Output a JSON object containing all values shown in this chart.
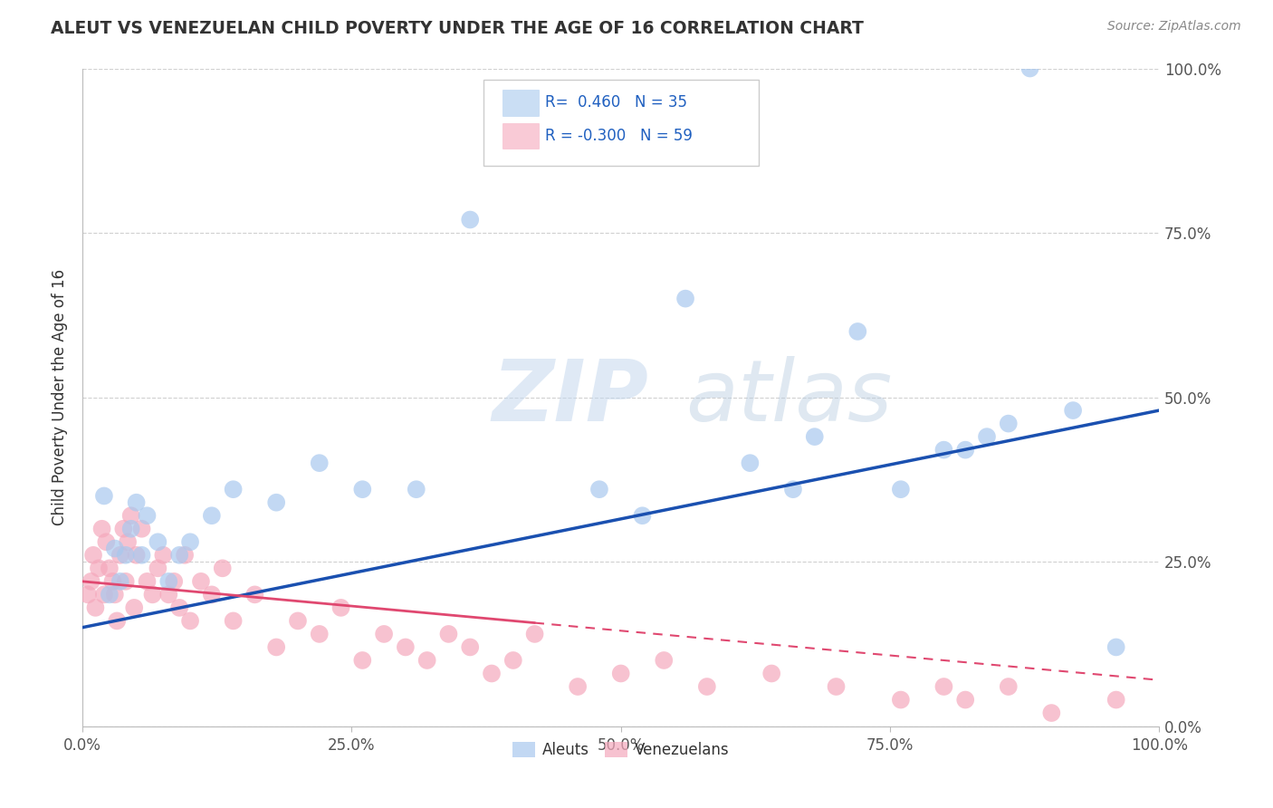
{
  "title": "ALEUT VS VENEZUELAN CHILD POVERTY UNDER THE AGE OF 16 CORRELATION CHART",
  "source": "Source: ZipAtlas.com",
  "ylabel": "Child Poverty Under the Age of 16",
  "aleut_R": 0.46,
  "aleut_N": 35,
  "venezuelan_R": -0.3,
  "venezuelan_N": 59,
  "aleut_color": "#a8c8ee",
  "venezuelan_color": "#f5a8bc",
  "aleut_line_color": "#1a50b0",
  "venezuelan_line_color": "#e04870",
  "watermark_zip": "ZIP",
  "watermark_atlas": "atlas",
  "aleut_x": [
    2.0,
    2.5,
    3.0,
    3.5,
    4.0,
    4.5,
    5.0,
    5.5,
    6.0,
    7.0,
    8.0,
    9.0,
    10.0,
    12.0,
    14.0,
    18.0,
    22.0,
    26.0,
    31.0,
    36.0,
    48.0,
    52.0,
    56.0,
    62.0,
    66.0,
    68.0,
    72.0,
    76.0,
    80.0,
    82.0,
    84.0,
    86.0,
    88.0,
    92.0,
    96.0
  ],
  "aleut_y": [
    35.0,
    20.0,
    27.0,
    22.0,
    26.0,
    30.0,
    34.0,
    26.0,
    32.0,
    28.0,
    22.0,
    26.0,
    28.0,
    32.0,
    36.0,
    34.0,
    40.0,
    36.0,
    36.0,
    77.0,
    36.0,
    32.0,
    65.0,
    40.0,
    36.0,
    44.0,
    60.0,
    36.0,
    42.0,
    42.0,
    44.0,
    46.0,
    100.0,
    48.0,
    12.0
  ],
  "venezuelan_x": [
    0.5,
    0.8,
    1.0,
    1.2,
    1.5,
    1.8,
    2.0,
    2.2,
    2.5,
    2.8,
    3.0,
    3.2,
    3.5,
    3.8,
    4.0,
    4.2,
    4.5,
    4.8,
    5.0,
    5.5,
    6.0,
    6.5,
    7.0,
    7.5,
    8.0,
    8.5,
    9.0,
    9.5,
    10.0,
    11.0,
    12.0,
    13.0,
    14.0,
    16.0,
    18.0,
    20.0,
    22.0,
    24.0,
    26.0,
    28.0,
    30.0,
    32.0,
    34.0,
    36.0,
    38.0,
    40.0,
    42.0,
    46.0,
    50.0,
    54.0,
    58.0,
    64.0,
    70.0,
    76.0,
    80.0,
    82.0,
    86.0,
    90.0,
    96.0
  ],
  "venezuelan_y": [
    20.0,
    22.0,
    26.0,
    18.0,
    24.0,
    30.0,
    20.0,
    28.0,
    24.0,
    22.0,
    20.0,
    16.0,
    26.0,
    30.0,
    22.0,
    28.0,
    32.0,
    18.0,
    26.0,
    30.0,
    22.0,
    20.0,
    24.0,
    26.0,
    20.0,
    22.0,
    18.0,
    26.0,
    16.0,
    22.0,
    20.0,
    24.0,
    16.0,
    20.0,
    12.0,
    16.0,
    14.0,
    18.0,
    10.0,
    14.0,
    12.0,
    10.0,
    14.0,
    12.0,
    8.0,
    10.0,
    14.0,
    6.0,
    8.0,
    10.0,
    6.0,
    8.0,
    6.0,
    4.0,
    6.0,
    4.0,
    6.0,
    2.0,
    4.0
  ],
  "xlim": [
    0,
    100
  ],
  "ylim": [
    0,
    100
  ],
  "yticks": [
    0,
    25,
    50,
    75,
    100
  ],
  "xticks": [
    0,
    25,
    50,
    75,
    100
  ],
  "xtick_labels": [
    "0.0%",
    "25.0%",
    "50.0%",
    "75.0%",
    "100.0%"
  ],
  "ytick_labels": [
    "0.0%",
    "25.0%",
    "50.0%",
    "75.0%",
    "100.0%"
  ],
  "background_color": "#ffffff",
  "grid_color": "#d0d0d0",
  "aleut_line_start_y": 15.0,
  "aleut_line_end_y": 48.0,
  "venezuelan_line_start_y": 22.0,
  "venezuelan_line_end_y": 7.0,
  "venezuelan_solid_end_x": 42.0
}
